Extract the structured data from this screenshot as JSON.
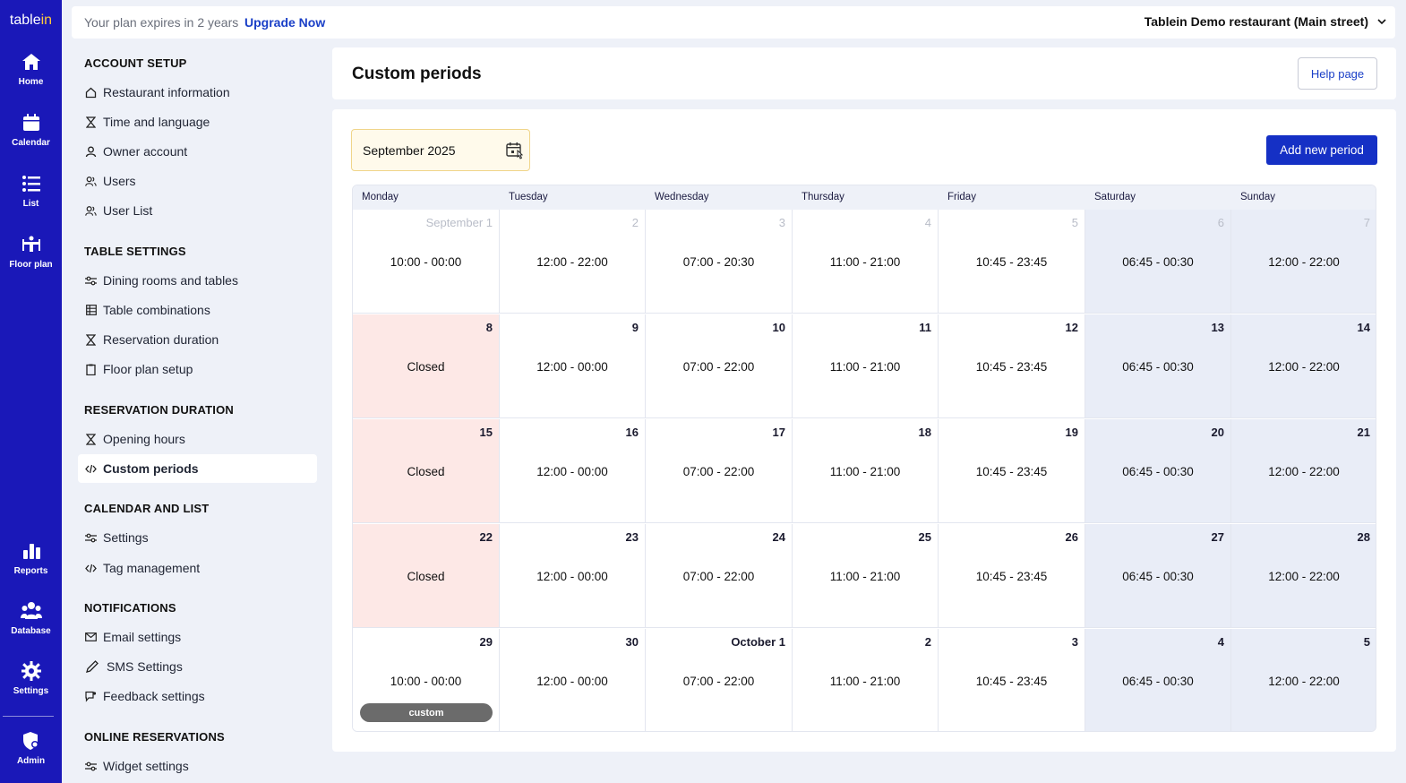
{
  "brand": {
    "logo_main": "table",
    "logo_accent": "in"
  },
  "rail": [
    {
      "label": "Home",
      "icon": "home-icon"
    },
    {
      "label": "Calendar",
      "icon": "calendar-icon"
    },
    {
      "label": "List",
      "icon": "list-icon"
    },
    {
      "label": "Floor plan",
      "icon": "floor-plan-icon"
    },
    {
      "label": "Reports",
      "icon": "reports-icon"
    },
    {
      "label": "Database",
      "icon": "database-icon"
    },
    {
      "label": "Settings",
      "icon": "gear-icon"
    },
    {
      "label": "Admin",
      "icon": "admin-icon"
    }
  ],
  "topbar": {
    "plan_text": "Your plan expires in 2 years",
    "upgrade_label": "Upgrade Now",
    "restaurant": "Tablein Demo restaurant (Main street)"
  },
  "sidebar": {
    "sections": [
      {
        "title": "ACCOUNT SETUP",
        "items": [
          "Restaurant information",
          "Time and language",
          "Owner account",
          "Users",
          "User List"
        ]
      },
      {
        "title": "TABLE SETTINGS",
        "items": [
          "Dining rooms and tables",
          "Table combinations",
          "Reservation duration",
          "Floor plan setup"
        ]
      },
      {
        "title": "RESERVATION DURATION",
        "items": [
          "Opening hours",
          "Custom periods"
        ]
      },
      {
        "title": "CALENDAR AND LIST",
        "items": [
          "Settings",
          "Tag management"
        ]
      },
      {
        "title": "NOTIFICATIONS",
        "items": [
          "Email settings",
          "SMS Settings",
          "Feedback settings"
        ]
      },
      {
        "title": "ONLINE RESERVATIONS",
        "items": [
          "Widget settings"
        ]
      }
    ],
    "active": "Custom periods"
  },
  "page": {
    "title": "Custom periods",
    "help_label": "Help page",
    "month_label": "September 2025",
    "add_label": "Add new period"
  },
  "calendar": {
    "weekdays": [
      "Monday",
      "Tuesday",
      "Wednesday",
      "Thursday",
      "Friday",
      "Saturday",
      "Sunday"
    ],
    "colors": {
      "weekend": "#e9edf7",
      "closed": "#fde8e6",
      "badge": "#6b6b6b"
    },
    "weeks": [
      [
        {
          "day": "September 1",
          "hours": "10:00 - 00:00",
          "muted": true
        },
        {
          "day": "2",
          "hours": "12:00 - 22:00",
          "muted": true
        },
        {
          "day": "3",
          "hours": "07:00 - 20:30",
          "muted": true
        },
        {
          "day": "4",
          "hours": "11:00 - 21:00",
          "muted": true
        },
        {
          "day": "5",
          "hours": "10:45 - 23:45",
          "muted": true
        },
        {
          "day": "6",
          "hours": "06:45 - 00:30",
          "muted": true
        },
        {
          "day": "7",
          "hours": "12:00 - 22:00",
          "muted": true
        }
      ],
      [
        {
          "day": "8",
          "hours": "Closed",
          "closed": true
        },
        {
          "day": "9",
          "hours": "12:00 - 00:00"
        },
        {
          "day": "10",
          "hours": "07:00 - 22:00"
        },
        {
          "day": "11",
          "hours": "11:00 - 21:00"
        },
        {
          "day": "12",
          "hours": "10:45 - 23:45"
        },
        {
          "day": "13",
          "hours": "06:45 - 00:30"
        },
        {
          "day": "14",
          "hours": "12:00 - 22:00"
        }
      ],
      [
        {
          "day": "15",
          "hours": "Closed",
          "closed": true
        },
        {
          "day": "16",
          "hours": "12:00 - 00:00"
        },
        {
          "day": "17",
          "hours": "07:00 - 22:00"
        },
        {
          "day": "18",
          "hours": "11:00 - 21:00"
        },
        {
          "day": "19",
          "hours": "10:45 - 23:45"
        },
        {
          "day": "20",
          "hours": "06:45 - 00:30"
        },
        {
          "day": "21",
          "hours": "12:00 - 22:00"
        }
      ],
      [
        {
          "day": "22",
          "hours": "Closed",
          "closed": true
        },
        {
          "day": "23",
          "hours": "12:00 - 00:00"
        },
        {
          "day": "24",
          "hours": "07:00 - 22:00"
        },
        {
          "day": "25",
          "hours": "11:00 - 21:00"
        },
        {
          "day": "26",
          "hours": "10:45 - 23:45"
        },
        {
          "day": "27",
          "hours": "06:45 - 00:30"
        },
        {
          "day": "28",
          "hours": "12:00 - 22:00"
        }
      ],
      [
        {
          "day": "29",
          "hours": "10:00 - 00:00",
          "badge": "custom"
        },
        {
          "day": "30",
          "hours": "12:00 - 00:00"
        },
        {
          "day": "October 1",
          "hours": "07:00 - 22:00"
        },
        {
          "day": "2",
          "hours": "11:00 - 21:00"
        },
        {
          "day": "3",
          "hours": "10:45 - 23:45"
        },
        {
          "day": "4",
          "hours": "06:45 - 00:30"
        },
        {
          "day": "5",
          "hours": "12:00 - 22:00"
        }
      ]
    ]
  }
}
